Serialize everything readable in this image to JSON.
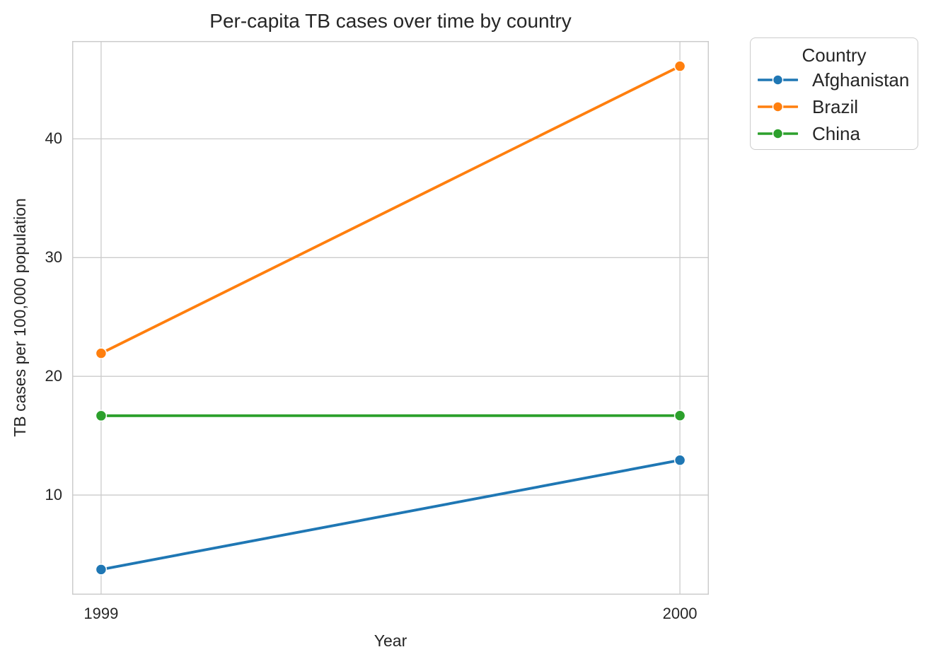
{
  "chart_data": {
    "type": "line",
    "title": "Per-capita TB cases over time by country",
    "xlabel": "Year",
    "ylabel": "TB cases per 100,000 population",
    "x": [
      1999,
      2000
    ],
    "xticks": [
      1999,
      2000
    ],
    "xtick_labels": [
      "1999",
      "2000"
    ],
    "yticks": [
      10,
      20,
      30,
      40
    ],
    "ytick_labels": [
      "10",
      "20",
      "30",
      "40"
    ],
    "xlim": [
      1998.95,
      2000.05
    ],
    "ylim": [
      1.607,
      48.243
    ],
    "grid": true,
    "background": "#ffffff",
    "grid_color": "#cccccc",
    "text_color": "#262626",
    "legend": {
      "title": "Country",
      "position": "upper right, outside plot"
    },
    "series": [
      {
        "name": "Afghanistan",
        "color": "#1f77b4",
        "values": [
          3.73,
          12.94
        ]
      },
      {
        "name": "Brazil",
        "color": "#ff7f0e",
        "values": [
          21.94,
          46.12
        ]
      },
      {
        "name": "China",
        "color": "#2ca02c",
        "values": [
          16.68,
          16.69
        ]
      }
    ]
  }
}
